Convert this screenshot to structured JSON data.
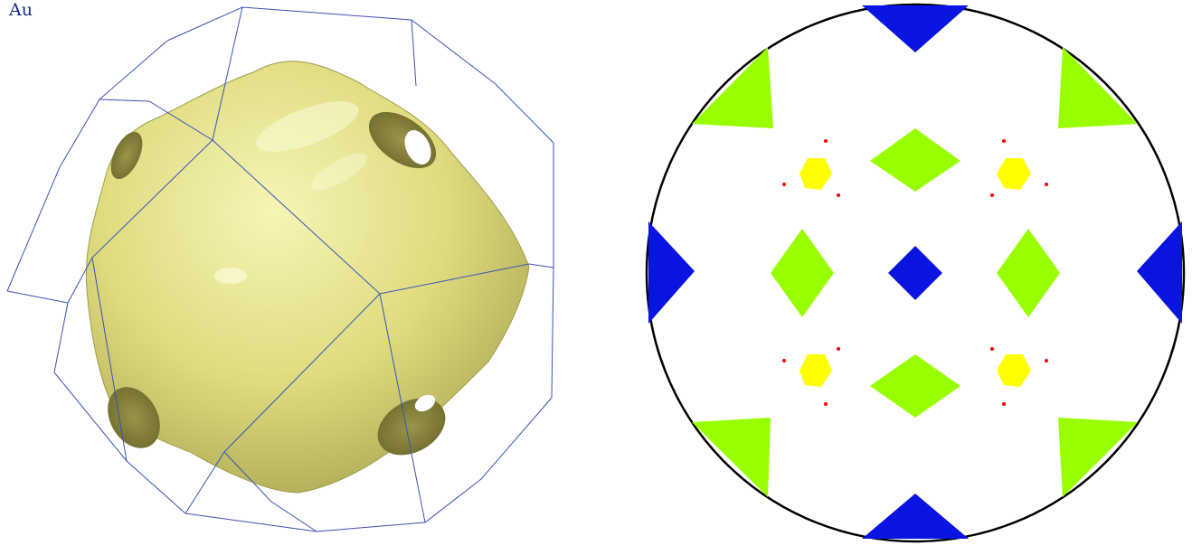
{
  "left_panel": {
    "element_label": "Au",
    "label_color": "#1a2a8c",
    "surface_color": "#e8e68a",
    "zone_color": "#3a52b8"
  },
  "right_panel": {
    "circle_color": "#000000",
    "region_colors": {
      "blue": "#0a14e0",
      "green": "#99ff00",
      "yellow": "#ffff00",
      "red": "#ff0000"
    }
  }
}
